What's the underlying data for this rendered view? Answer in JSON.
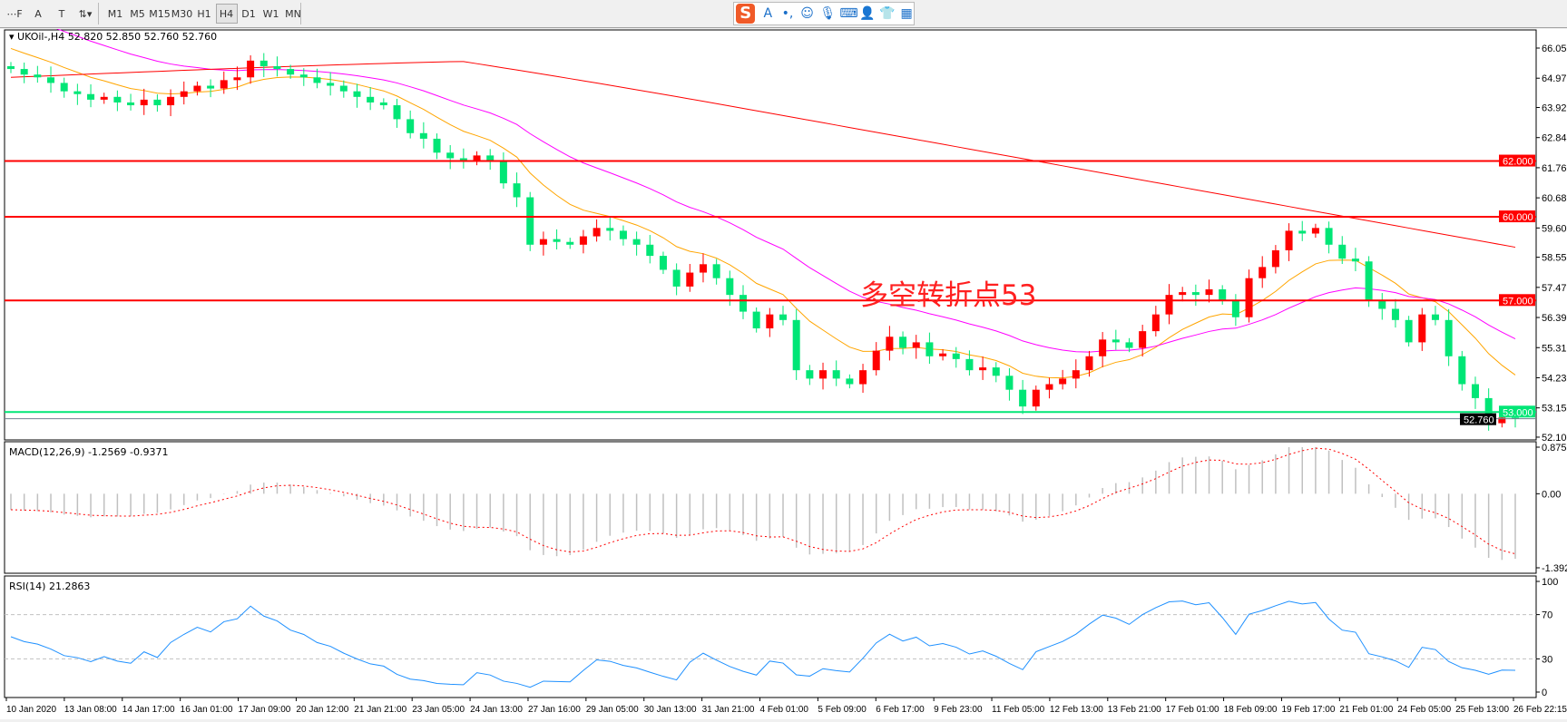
{
  "toolbar": {
    "tools": [
      {
        "name": "period-separator-icon",
        "glyph": "⋯F"
      },
      {
        "name": "text-tool-icon",
        "glyph": "A"
      },
      {
        "name": "text-label-tool-icon",
        "glyph": "T"
      },
      {
        "name": "arrows-tool-icon",
        "glyph": "⇅▾"
      }
    ],
    "timeframes": [
      "M1",
      "M5",
      "M15",
      "M30",
      "H1",
      "H4",
      "D1",
      "W1",
      "MN"
    ],
    "active_timeframe": "H4"
  },
  "ime_bar": {
    "icons": [
      "sogou-logo-icon",
      "chinese-english-icon",
      "punctuation-icon",
      "emoji-icon",
      "microphone-icon",
      "keyboard-icon",
      "user-icon",
      "skin-icon",
      "toolbox-icon"
    ]
  },
  "chart": {
    "header": "UKOil-,H4  52.820 52.850 52.760 52.760",
    "annotation": "多空转折点53",
    "colors": {
      "bull": "#ff0000",
      "bear": "#00e676",
      "ma_fast": "#ffa500",
      "ma_mid": "#ff00ff",
      "ma_slow": "#ff0000",
      "level": "#ff0000",
      "support": "#00e676"
    }
  },
  "chart_data": {
    "type": "candlestick",
    "symbol": "UKOil-",
    "timeframe": "H4",
    "price_ticks": [
      "66.050",
      "64.970",
      "63.920",
      "62.840",
      "61.760",
      "60.680",
      "59.600",
      "58.550",
      "57.470",
      "56.390",
      "55.310",
      "54.230",
      "53.150",
      "52.100"
    ],
    "ylim": [
      52.1,
      66.05
    ],
    "levels": [
      {
        "price": 62.0,
        "label": "62.000",
        "color": "#ff0000"
      },
      {
        "price": 60.0,
        "label": "60.000",
        "color": "#ff0000"
      },
      {
        "price": 57.0,
        "label": "57.000",
        "color": "#ff0000"
      },
      {
        "price": 53.0,
        "label": "53.000",
        "color": "#00e676"
      }
    ],
    "current_price": {
      "price": 52.76,
      "label": "52.760"
    },
    "close": [
      65.3,
      65.1,
      65.0,
      64.8,
      64.5,
      64.4,
      64.2,
      64.3,
      64.1,
      64.0,
      64.2,
      64.0,
      64.3,
      64.5,
      64.7,
      64.6,
      64.9,
      65.0,
      65.6,
      65.4,
      65.3,
      65.1,
      65.0,
      64.8,
      64.7,
      64.5,
      64.3,
      64.1,
      64.0,
      63.5,
      63.0,
      62.8,
      62.3,
      62.1,
      62.0,
      62.2,
      62.0,
      61.2,
      60.7,
      59.0,
      59.2,
      59.1,
      59.0,
      59.3,
      59.6,
      59.5,
      59.2,
      59.0,
      58.6,
      58.1,
      57.5,
      58.0,
      58.3,
      57.8,
      57.2,
      56.6,
      56.0,
      56.5,
      56.3,
      54.5,
      54.2,
      54.5,
      54.2,
      54.0,
      54.5,
      55.2,
      55.7,
      55.3,
      55.5,
      55.0,
      55.1,
      54.9,
      54.5,
      54.6,
      54.3,
      53.8,
      53.2,
      53.8,
      54.0,
      54.2,
      54.5,
      55.0,
      55.6,
      55.5,
      55.3,
      55.9,
      56.5,
      57.2,
      57.3,
      57.2,
      57.4,
      57.0,
      56.4,
      57.8,
      58.2,
      58.8,
      59.5,
      59.4,
      59.6,
      59.0,
      58.5,
      58.4,
      57.0,
      56.7,
      56.3,
      55.5,
      56.5,
      56.3,
      55.0,
      54.0,
      53.5,
      52.6,
      52.8,
      52.76
    ],
    "x_ticks": [
      "10 Jan 2020",
      "13 Jan 08:00",
      "14 Jan 17:00",
      "16 Jan 01:00",
      "17 Jan 09:00",
      "20 Jan 12:00",
      "21 Jan 21:00",
      "23 Jan 05:00",
      "24 Jan 13:00",
      "27 Jan 16:00",
      "29 Jan 05:00",
      "30 Jan 13:00",
      "31 Jan 21:00",
      "4 Feb 01:00",
      "5 Feb 09:00",
      "6 Feb 17:00",
      "9 Feb 23:00",
      "11 Feb 05:00",
      "12 Feb 13:00",
      "13 Feb 21:00",
      "17 Feb 01:00",
      "18 Feb 09:00",
      "19 Feb 17:00",
      "21 Feb 01:00",
      "24 Feb 05:00",
      "25 Feb 13:00",
      "26 Feb 22:15"
    ],
    "macd": {
      "label": "MACD(12,26,9) -1.2569 -0.9371",
      "ticks": [
        "0.8756",
        "0.00",
        "-1.3923"
      ],
      "ylim": [
        -1.3923,
        0.8756
      ],
      "hist_color": "#c0c0c0",
      "signal_color": "#ff0000"
    },
    "rsi": {
      "label": "RSI(14) 21.2863",
      "ticks": [
        "100",
        "70",
        "30",
        "0"
      ],
      "levels": [
        70,
        30
      ],
      "ylim": [
        0,
        100
      ],
      "color": "#1e90ff"
    }
  }
}
